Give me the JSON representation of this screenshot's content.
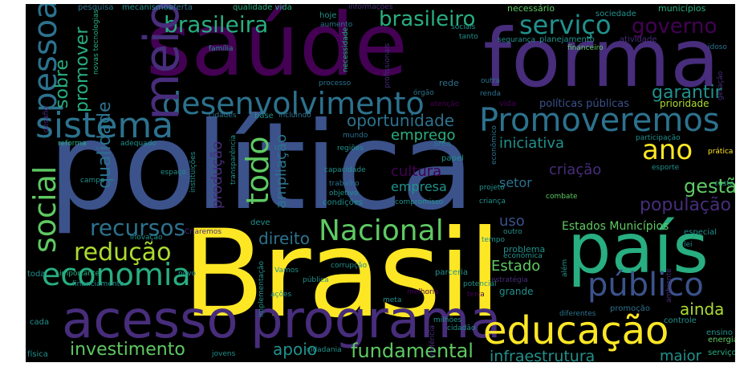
{
  "palette": {
    "purple": "#440154",
    "indigo": "#472d7b",
    "blue": "#3b528b",
    "slate": "#2c728e",
    "teal": "#21918c",
    "green": "#28ae80",
    "lime": "#5ec962",
    "yellowgreen": "#addc30",
    "yellow": "#fde725",
    "background": "#000000"
  },
  "words": {
    "politica": "política",
    "brasil": "Brasil",
    "saude": "saúde",
    "forma": "forma",
    "pais": "país",
    "acesso": "acesso",
    "programa": "programa",
    "educacao": "educação",
    "sistema": "sistema",
    "desenvolvimento": "desenvolvimento",
    "promoveremos": "Promoveremos",
    "servico": "serviço",
    "brasileiro": "brasileiro",
    "brasileira": "brasileira",
    "meio": "meio",
    "pessoa": "pessoa",
    "social": "social",
    "economia": "economia",
    "reducao": "redução",
    "recursos": "recursos",
    "nacional": "Nacional",
    "publico": "público",
    "ano": "ano",
    "todo": "todo",
    "governo": "governo",
    "garantir": "garantir",
    "sobre": "sobre",
    "promover": "promover",
    "qualidade": "qualidade",
    "investimento": "investimento",
    "fundamental": "fundamental",
    "infraestrutura": "infraestrutura",
    "apoio": "apoio",
    "ainda": "ainda",
    "maior": "maior",
    "gestao": "gestão",
    "populacao": "população",
    "direito": "direito",
    "oportunidade": "oportunidade",
    "emprego": "emprego",
    "iniciativa": "iniciativa",
    "cultura": "cultura",
    "empresa": "empresa",
    "setor": "setor",
    "criacao": "criação",
    "ampliacao": "ampliação",
    "producao": "produção",
    "uso": "uso",
    "estado": "Estado",
    "estados_municipios": "Estados Municípios",
    "politicas_publicas": "políticas públicas",
    "prioridade": "prioridade",
    "pesquisa": "pesquisa",
    "mecanismos": "mecanismos",
    "oferta": "oferta",
    "qualidade_vida": "qualidade vida",
    "informacoes": "informações",
    "necessario": "necessário",
    "municipios": "municípios",
    "sociedade": "sociedade",
    "hoje": "hoje",
    "aumento": "aumento",
    "sociais": "sociais",
    "tanto": "tanto",
    "seguranca": "segurança",
    "planejamento": "planejamento",
    "financeiro": "financeiro",
    "atividade": "atividade",
    "idoso": "idoso",
    "familia": "família",
    "novas_tecnologias": "novas tecnologias",
    "processo": "processo",
    "necessidade": "necessidade",
    "profissionais": "profissionais",
    "orgao": "órgão",
    "rede": "rede",
    "atencao": "atenção",
    "renda": "renda",
    "outra": "outra",
    "geracao": "geração",
    "vida": "vida",
    "cidades": "cidades",
    "base": "base",
    "incluindo": "incluindo",
    "mundo": "mundo",
    "area": "área",
    "reforma": "reforma",
    "adequado": "adequado",
    "desafio": "desafio",
    "regioes": "regiões",
    "papel": "papel",
    "economico": "econômico",
    "participacao": "participação",
    "pratica": "prática",
    "campo": "campo",
    "espaco": "espaço",
    "instituicoes": "instituições",
    "transparencia": "transparência",
    "capacidade": "capacidade",
    "trabalho": "trabalho",
    "objetivo": "objetivo",
    "condicoes": "condições",
    "compromisso": "compromisso",
    "projeto": "projeto",
    "esporte": "esporte",
    "custo": "custo",
    "crianca": "criança",
    "combate": "combate",
    "deve": "deve",
    "criaremos": "Criaremos",
    "inovacao": "inovação",
    "tempo": "tempo",
    "outro": "outro",
    "especial": "especial",
    "lei": "lei",
    "problema": "problema",
    "economica": "econômica",
    "toda": "toda",
    "importante": "importante",
    "novo": "novo",
    "vamos": "Vamos",
    "corrupcao": "corrupção",
    "parceria": "parceria",
    "estrategia": "estratégia",
    "alem": "além",
    "financiamento": "financiamento",
    "publica": "pública",
    "acoes": "ações",
    "implementacao": "implementação",
    "melhoria": "melhoria",
    "meta": "meta",
    "potencial": "potencial",
    "terra": "terra",
    "grande": "grande",
    "ambiente": "ambiente",
    "promocao": "promoção",
    "diferentes": "diferentes",
    "controle": "controle",
    "cada": "cada",
    "milhoes": "milhões",
    "cidadao": "cidadão",
    "ensino": "ensino",
    "cidadania": "cidadania",
    "violencia": "violência",
    "energia": "energia",
    "fisica": "física",
    "jovens": "jovens",
    "servicos": "serviços"
  }
}
